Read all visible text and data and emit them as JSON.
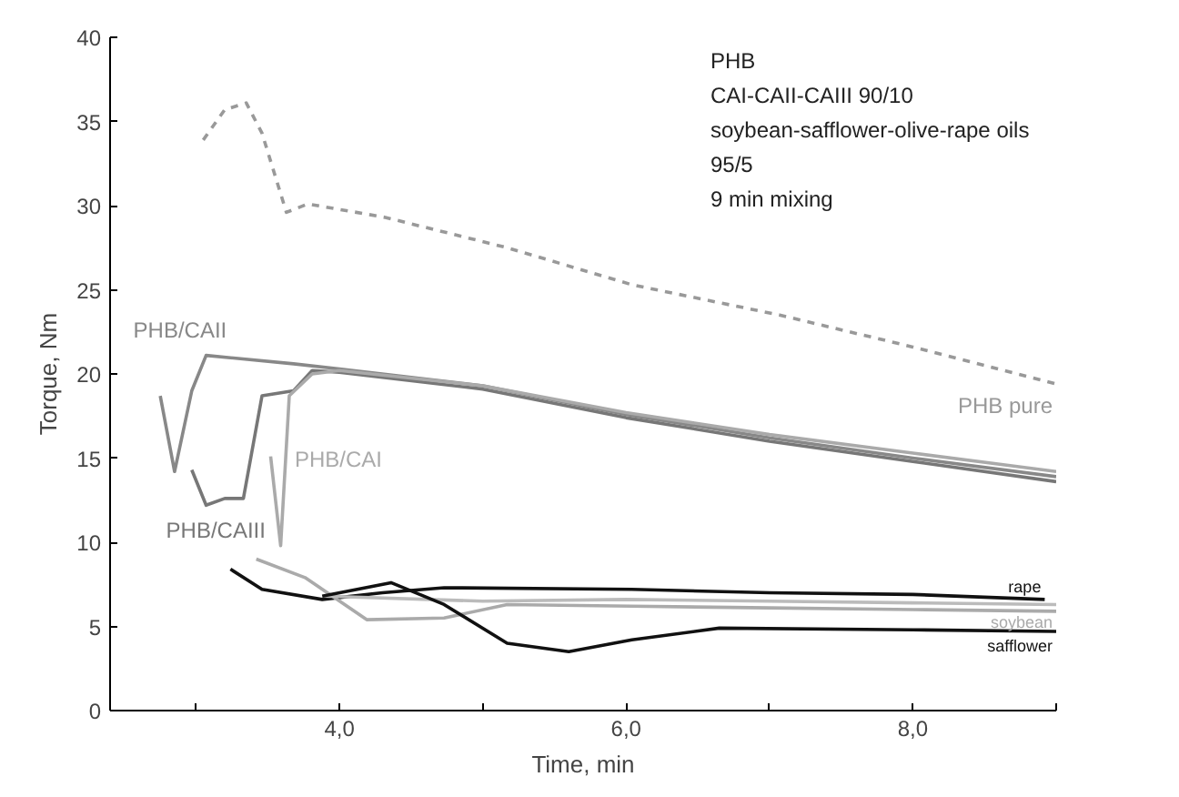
{
  "chart_data": {
    "type": "line",
    "xlabel": "Time, min",
    "ylabel": "Torque, Nm",
    "annotations": [
      "PHB",
      "CAI-CAII-CAIII 90/10",
      "soybean-safflower-olive-rape oils",
      "95/5",
      "9 min mixing"
    ],
    "xlim": [
      2.4,
      9.0
    ],
    "ylim": [
      0,
      40
    ],
    "xticks": [
      {
        "value": 3,
        "label": null
      },
      {
        "value": 4,
        "label": "4,0"
      },
      {
        "value": 5,
        "label": null
      },
      {
        "value": 6,
        "label": "6,0"
      },
      {
        "value": 7,
        "label": null
      },
      {
        "value": 8,
        "label": "8,0"
      },
      {
        "value": 9,
        "label": null
      }
    ],
    "yticks": [
      0,
      5,
      10,
      15,
      20,
      25,
      30,
      35,
      40
    ],
    "grid": false,
    "marker": "none",
    "series": [
      {
        "name": "PHB pure",
        "color": "#999999",
        "line_style": "dashed",
        "x": [
          3.05,
          3.2,
          3.35,
          3.46,
          3.63,
          3.78,
          4.32,
          5.17,
          6.04,
          7.07,
          8.0,
          9.0
        ],
        "values": [
          33.9,
          35.7,
          36.1,
          34.3,
          29.6,
          30.1,
          29.3,
          27.5,
          25.3,
          23.5,
          21.6,
          19.4
        ]
      },
      {
        "name": "PHB/CAII",
        "color": "#888888",
        "x": [
          2.75,
          2.85,
          2.97,
          3.07,
          3.68,
          4.0,
          5.0,
          6.0,
          7.0,
          8.0,
          9.0
        ],
        "values": [
          18.7,
          14.2,
          19.0,
          21.1,
          20.6,
          20.3,
          19.3,
          17.6,
          16.2,
          15.0,
          13.9
        ]
      },
      {
        "name": "PHB/CAIII",
        "color": "#777777",
        "x": [
          2.97,
          3.07,
          3.2,
          3.33,
          3.46,
          3.68,
          3.81,
          4.0,
          5.0,
          6.0,
          7.0,
          8.0,
          9.0
        ],
        "values": [
          14.3,
          12.2,
          12.6,
          12.6,
          18.7,
          19.0,
          20.2,
          20.1,
          19.1,
          17.4,
          16.0,
          14.8,
          13.6
        ]
      },
      {
        "name": "PHB/CAI",
        "color": "#aaaaaa",
        "x": [
          3.52,
          3.59,
          3.65,
          3.81,
          4.0,
          5.0,
          6.0,
          7.0,
          8.0,
          9.0
        ],
        "values": [
          15.1,
          9.8,
          18.7,
          20.0,
          20.2,
          19.3,
          17.7,
          16.4,
          15.3,
          14.2
        ]
      },
      {
        "name": "rape",
        "color": "#111111",
        "x": [
          3.24,
          3.46,
          3.88,
          4.3,
          4.73,
          6.04,
          7.0,
          8.0,
          8.92
        ],
        "values": [
          8.4,
          7.2,
          6.6,
          7.0,
          7.3,
          7.2,
          7.0,
          6.9,
          6.6
        ]
      },
      {
        "name": "soybean",
        "color": "#aaaaaa",
        "x": [
          3.42,
          3.76,
          4.19,
          4.73,
          5.17,
          6.04,
          7.0,
          8.0,
          9.0
        ],
        "values": [
          9.0,
          7.9,
          5.4,
          5.5,
          6.3,
          6.2,
          6.1,
          6.0,
          5.9
        ]
      },
      {
        "color": "#bbbbbb",
        "x": [
          3.9,
          5.0,
          6.0,
          7.0,
          8.0,
          9.0
        ],
        "values": [
          6.8,
          6.5,
          6.6,
          6.5,
          6.4,
          6.3
        ]
      },
      {
        "name": "safflower",
        "color": "#111111",
        "x": [
          3.88,
          4.36,
          4.73,
          5.17,
          5.6,
          6.04,
          6.65,
          8.0,
          9.0
        ],
        "values": [
          6.8,
          7.6,
          6.3,
          4.0,
          3.5,
          4.2,
          4.9,
          4.8,
          4.7
        ]
      }
    ]
  }
}
